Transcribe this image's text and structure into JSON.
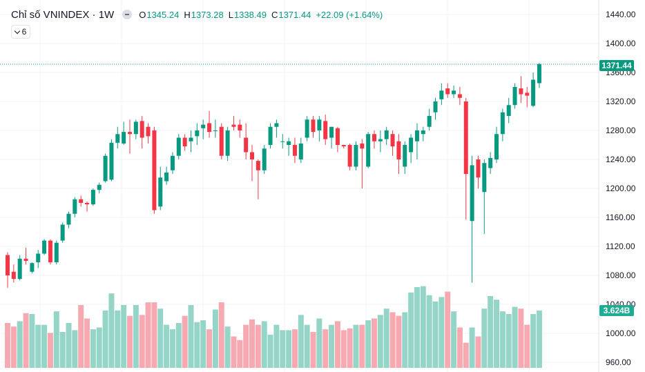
{
  "legend": {
    "title": "Chỉ số VNINDEX · 1W",
    "open_label": "O",
    "open": "1345.24",
    "high_label": "H",
    "high": "1373.28",
    "low_label": "L",
    "low": "1338.49",
    "close_label": "C",
    "close": "1371.44",
    "change": "+22.09 (+1.64%)"
  },
  "indicators_toggle": {
    "count": "6"
  },
  "price_tag": "1371.44",
  "volume_tag": "3.624B",
  "colors": {
    "up": "#089981",
    "down": "#F23645",
    "up_volume": "#95d5c7",
    "down_volume": "#f7a9b1",
    "axis_text": "#131722"
  },
  "chart_data": {
    "type": "candlestick",
    "title": "Chỉ số VNINDEX · 1W",
    "y_axis": {
      "ticks": [
        "960.00",
        "1000.00",
        "1040.00",
        "1080.00",
        "1120.00",
        "1160.00",
        "1200.00",
        "1240.00",
        "1280.00",
        "1320.00",
        "1360.00",
        "1400.00",
        "1440.00"
      ],
      "range": [
        950,
        1455
      ],
      "position": "right"
    },
    "grid": true,
    "last_price": 1371.44,
    "last_volume": "3.624B",
    "candles": [
      [
        1108,
        1112,
        1063,
        1080
      ],
      [
        1085,
        1095,
        1070,
        1075
      ],
      [
        1075,
        1108,
        1073,
        1103
      ],
      [
        1103,
        1118,
        1095,
        1100
      ],
      [
        1085,
        1098,
        1083,
        1097
      ],
      [
        1098,
        1115,
        1090,
        1110
      ],
      [
        1110,
        1130,
        1108,
        1128
      ],
      [
        1128,
        1130,
        1095,
        1098
      ],
      [
        1098,
        1128,
        1095,
        1125
      ],
      [
        1128,
        1153,
        1125,
        1150
      ],
      [
        1150,
        1168,
        1145,
        1165
      ],
      [
        1165,
        1188,
        1160,
        1185
      ],
      [
        1185,
        1190,
        1175,
        1180
      ],
      [
        1180,
        1182,
        1168,
        1178
      ],
      [
        1178,
        1200,
        1176,
        1198
      ],
      [
        1198,
        1208,
        1193,
        1205
      ],
      [
        1210,
        1248,
        1208,
        1245
      ],
      [
        1212,
        1268,
        1210,
        1263
      ],
      [
        1263,
        1285,
        1255,
        1275
      ],
      [
        1262,
        1292,
        1260,
        1278
      ],
      [
        1278,
        1295,
        1248,
        1275
      ],
      [
        1275,
        1295,
        1268,
        1292
      ],
      [
        1293,
        1300,
        1255,
        1270
      ],
      [
        1285,
        1290,
        1262,
        1272
      ],
      [
        1280,
        1285,
        1165,
        1170
      ],
      [
        1175,
        1230,
        1170,
        1215
      ],
      [
        1210,
        1230,
        1205,
        1222
      ],
      [
        1225,
        1250,
        1220,
        1245
      ],
      [
        1245,
        1275,
        1240,
        1270
      ],
      [
        1270,
        1275,
        1252,
        1258
      ],
      [
        1265,
        1280,
        1250,
        1270
      ],
      [
        1272,
        1290,
        1260,
        1280
      ],
      [
        1283,
        1295,
        1268,
        1288
      ],
      [
        1290,
        1307,
        1270,
        1278
      ],
      [
        1280,
        1295,
        1270,
        1280
      ],
      [
        1285,
        1290,
        1240,
        1245
      ],
      [
        1245,
        1285,
        1238,
        1280
      ],
      [
        1288,
        1300,
        1280,
        1285
      ],
      [
        1288,
        1295,
        1270,
        1280
      ],
      [
        1270,
        1290,
        1240,
        1250
      ],
      [
        1250,
        1260,
        1210,
        1240
      ],
      [
        1238,
        1240,
        1185,
        1225
      ],
      [
        1225,
        1260,
        1220,
        1255
      ],
      [
        1260,
        1290,
        1255,
        1285
      ],
      [
        1285,
        1295,
        1270,
        1290
      ],
      [
        1265,
        1275,
        1255,
        1265
      ],
      [
        1260,
        1270,
        1245,
        1265
      ],
      [
        1260,
        1270,
        1235,
        1245
      ],
      [
        1240,
        1270,
        1235,
        1262
      ],
      [
        1270,
        1300,
        1265,
        1295
      ],
      [
        1295,
        1300,
        1270,
        1278
      ],
      [
        1280,
        1300,
        1265,
        1295
      ],
      [
        1293,
        1302,
        1260,
        1268
      ],
      [
        1270,
        1285,
        1255,
        1285
      ],
      [
        1283,
        1285,
        1250,
        1260
      ],
      [
        1260,
        1260,
        1255,
        1258
      ],
      [
        1260,
        1262,
        1225,
        1230
      ],
      [
        1230,
        1265,
        1225,
        1260
      ],
      [
        1262,
        1268,
        1200,
        1255
      ],
      [
        1230,
        1278,
        1228,
        1275
      ],
      [
        1275,
        1280,
        1255,
        1265
      ],
      [
        1265,
        1280,
        1250,
        1268
      ],
      [
        1268,
        1285,
        1260,
        1280
      ],
      [
        1275,
        1280,
        1245,
        1258
      ],
      [
        1265,
        1275,
        1220,
        1240
      ],
      [
        1230,
        1265,
        1220,
        1260
      ],
      [
        1250,
        1275,
        1235,
        1270
      ],
      [
        1265,
        1290,
        1240,
        1280
      ],
      [
        1275,
        1285,
        1265,
        1280
      ],
      [
        1285,
        1310,
        1280,
        1300
      ],
      [
        1305,
        1325,
        1295,
        1320
      ],
      [
        1323,
        1345,
        1315,
        1335
      ],
      [
        1338,
        1345,
        1325,
        1330
      ],
      [
        1330,
        1342,
        1325,
        1335
      ],
      [
        1330,
        1340,
        1315,
        1325
      ],
      [
        1320,
        1325,
        1157,
        1220
      ],
      [
        1155,
        1245,
        1070,
        1232
      ],
      [
        1240,
        1245,
        1200,
        1215
      ],
      [
        1195,
        1240,
        1137,
        1235
      ],
      [
        1228,
        1250,
        1220,
        1242
      ],
      [
        1240,
        1285,
        1235,
        1275
      ],
      [
        1275,
        1310,
        1265,
        1305
      ],
      [
        1300,
        1325,
        1290,
        1315
      ],
      [
        1315,
        1345,
        1310,
        1340
      ],
      [
        1338,
        1355,
        1318,
        1330
      ],
      [
        1332,
        1340,
        1312,
        1328
      ],
      [
        1314,
        1360,
        1312,
        1350
      ],
      [
        1345.24,
        1373.28,
        1338.49,
        1371.44
      ]
    ],
    "volume_rel": [
      0.5,
      0.46,
      0.52,
      0.61,
      0.6,
      0.48,
      0.48,
      0.39,
      0.63,
      0.4,
      0.5,
      0.42,
      0.7,
      0.55,
      0.43,
      0.45,
      0.64,
      0.83,
      0.64,
      0.7,
      0.58,
      0.7,
      0.59,
      0.73,
      0.73,
      0.66,
      0.48,
      0.43,
      0.5,
      0.58,
      0.7,
      0.51,
      0.53,
      0.43,
      0.65,
      0.73,
      0.46,
      0.35,
      0.31,
      0.48,
      0.54,
      0.48,
      0.52,
      0.37,
      0.48,
      0.42,
      0.42,
      0.43,
      0.59,
      0.48,
      0.4,
      0.55,
      0.43,
      0.48,
      0.52,
      0.42,
      0.44,
      0.48,
      0.48,
      0.53,
      0.55,
      0.59,
      0.66,
      0.62,
      0.58,
      0.62,
      0.84,
      0.9,
      0.91,
      0.81,
      0.74,
      0.79,
      0.85,
      0.63,
      0.45,
      0.28,
      0.45,
      0.35,
      0.66,
      0.8,
      0.76,
      0.63,
      0.6,
      0.68,
      0.66,
      0.48,
      0.6,
      0.64
    ]
  }
}
